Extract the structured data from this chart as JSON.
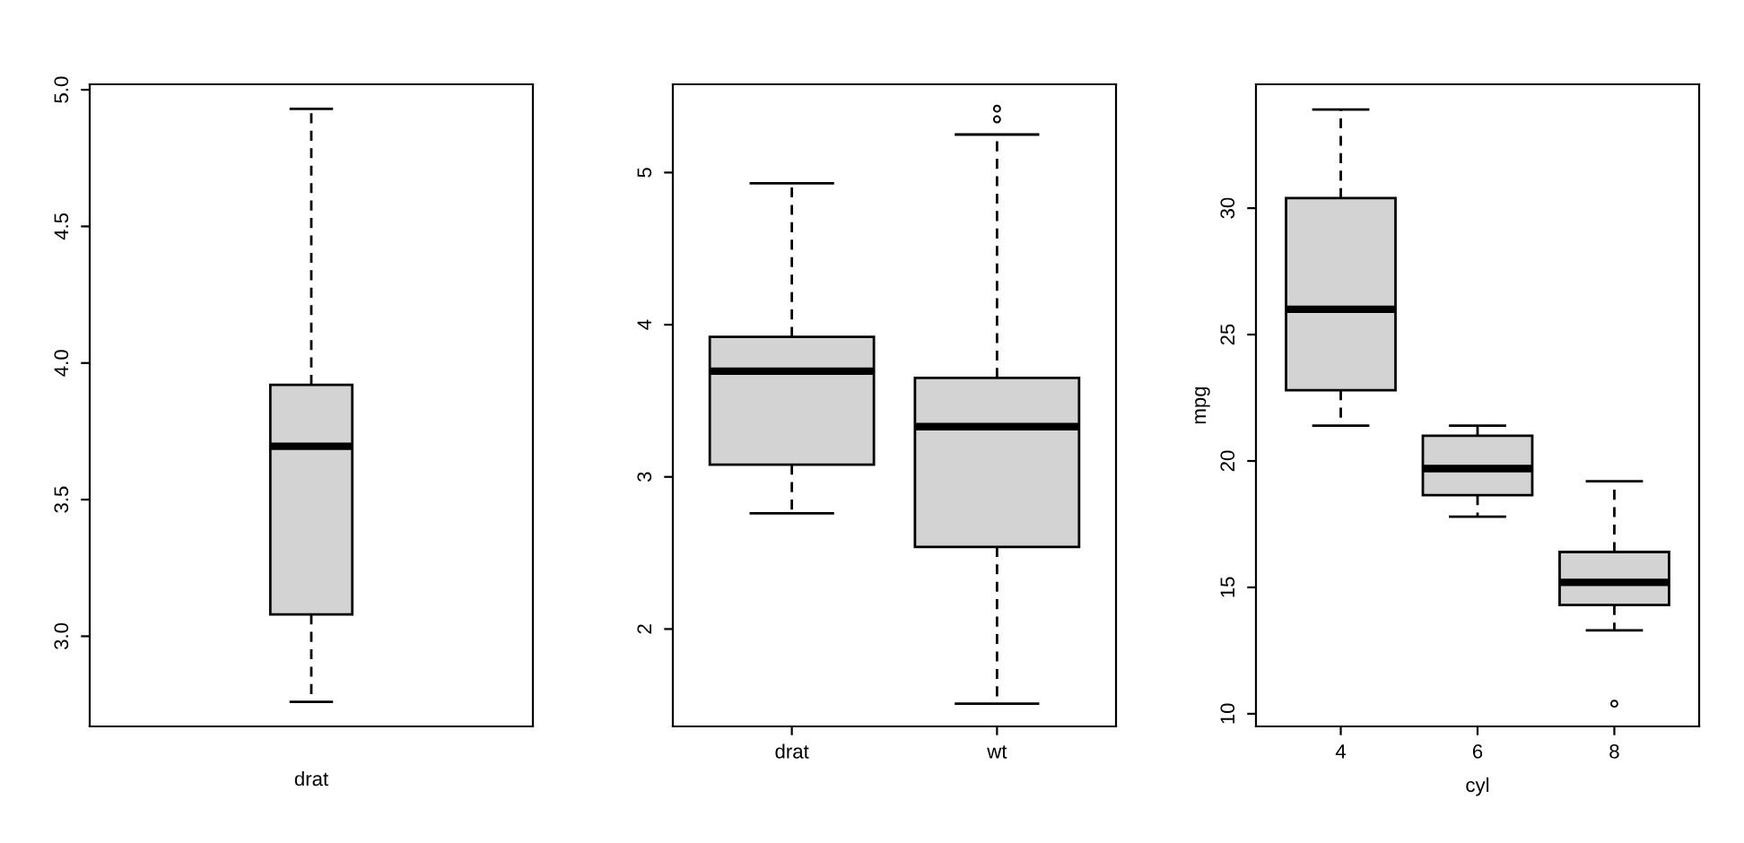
{
  "chart_data": [
    {
      "type": "box",
      "categories": [
        null
      ],
      "xlabel": "drat",
      "color": "#d3d3d3",
      "boxes": [
        {
          "low": 2.76,
          "q1": 3.08,
          "median": 3.695,
          "q3": 3.92,
          "high": 4.93
        }
      ],
      "ylim": [
        2.67,
        5.02
      ],
      "yticks": [
        {
          "value": 3.0,
          "label": "3.0"
        },
        {
          "value": 3.5,
          "label": "3.5"
        },
        {
          "value": 4.0,
          "label": "4.0"
        },
        {
          "value": 4.5,
          "label": "4.5"
        },
        {
          "value": 5.0,
          "label": "5.0"
        }
      ]
    },
    {
      "type": "box",
      "categories": [
        "drat",
        "wt"
      ],
      "color": "#d3d3d3",
      "boxes": [
        {
          "low": 2.76,
          "q1": 3.08,
          "median": 3.695,
          "q3": 3.92,
          "high": 4.93
        },
        {
          "low": 1.51,
          "q1": 2.54,
          "median": 3.33,
          "q3": 3.65,
          "high": 5.25,
          "outliers": [
            5.35,
            5.42
          ]
        }
      ],
      "ylim": [
        1.36,
        5.58
      ],
      "yticks": [
        2,
        3,
        4,
        5
      ]
    },
    {
      "type": "box",
      "categories": [
        "4",
        "6",
        "8"
      ],
      "xlabel": "cyl",
      "ylabel": "mpg",
      "color": "#d3d3d3",
      "boxes": [
        {
          "low": 21.4,
          "q1": 22.8,
          "median": 26.0,
          "q3": 30.4,
          "high": 33.9
        },
        {
          "low": 17.8,
          "q1": 18.65,
          "median": 19.7,
          "q3": 21.0,
          "high": 21.4
        },
        {
          "low": 13.3,
          "q1": 14.3,
          "median": 15.2,
          "q3": 16.4,
          "high": 19.2,
          "outliers": [
            10.4
          ]
        }
      ],
      "ylim": [
        9.5,
        34.9
      ],
      "yticks": [
        10,
        15,
        20,
        25,
        30
      ]
    }
  ]
}
